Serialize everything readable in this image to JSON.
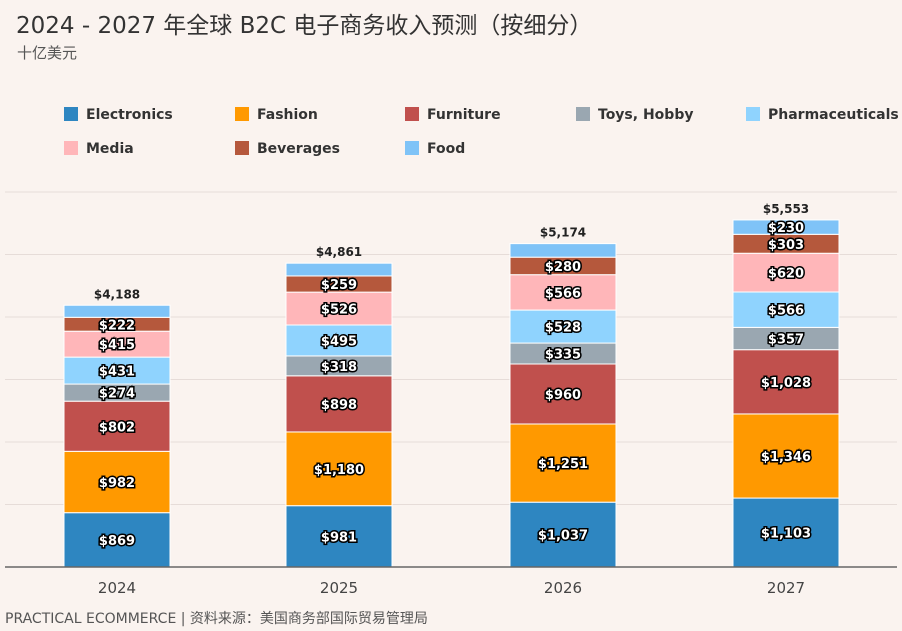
{
  "header": {
    "title": "2024 - 2027 年全球 B2C 电子商务收入预测（按细分）",
    "subtitle": "十亿美元"
  },
  "footer": {
    "source": "PRACTICAL ECOMMERCE | 资料来源：美国商务部国际贸易管理局"
  },
  "chart_data": {
    "type": "bar",
    "stacked": true,
    "categories": [
      "2024",
      "2025",
      "2026",
      "2027"
    ],
    "title": "2024 - 2027 年全球 B2C 电子商务收入预测（按细分）",
    "ylabel": "十亿美元",
    "ylim": [
      0,
      6000
    ],
    "grid": true,
    "legend_placement": "top",
    "series": [
      {
        "name": "Electronics",
        "color": "#2e86c1",
        "values": [
          869,
          981,
          1037,
          1103
        ],
        "labels": [
          "$869",
          "$981",
          "$1,037",
          "$1,103"
        ]
      },
      {
        "name": "Fashion",
        "color": "#ff9900",
        "values": [
          982,
          1180,
          1251,
          1346
        ],
        "labels": [
          "$982",
          "$1,180",
          "$1,251",
          "$1,346"
        ]
      },
      {
        "name": "Furniture",
        "color": "#c0504d",
        "values": [
          802,
          898,
          960,
          1028
        ],
        "labels": [
          "$802",
          "$898",
          "$960",
          "$1,028"
        ]
      },
      {
        "name": "Toys, Hobby",
        "color": "#9aa7b1",
        "values": [
          274,
          318,
          335,
          357
        ],
        "labels": [
          "$274",
          "$318",
          "$335",
          "$357"
        ]
      },
      {
        "name": "Pharmaceuticals",
        "color": "#8fd3fe",
        "values": [
          431,
          495,
          528,
          566
        ],
        "labels": [
          "$431",
          "$495",
          "$528",
          "$566"
        ]
      },
      {
        "name": "Media",
        "color": "#ffb6b9",
        "values": [
          415,
          526,
          566,
          620
        ],
        "labels": [
          "$415",
          "$526",
          "$566",
          "$620"
        ]
      },
      {
        "name": "Beverages",
        "color": "#b5583c",
        "values": [
          222,
          259,
          280,
          303
        ],
        "labels": [
          "$222",
          "$259",
          "$280",
          "$303"
        ]
      },
      {
        "name": "Food",
        "color": "#7fc3f7",
        "values": [
          193,
          204,
          217,
          230
        ],
        "labels": [
          "",
          "",
          "",
          "$230"
        ]
      }
    ],
    "totals": [
      4188,
      4861,
      5174,
      5553
    ],
    "total_labels": [
      "$4,188",
      "$4,861",
      "$5,174",
      "$5,553"
    ]
  }
}
